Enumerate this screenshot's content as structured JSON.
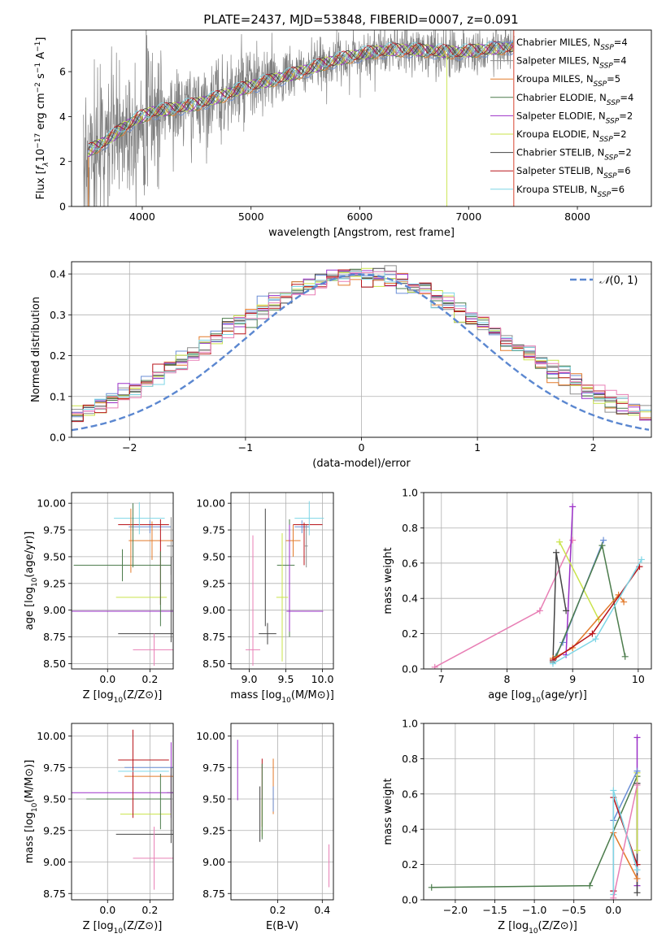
{
  "figure": {
    "title": "PLATE=2437, MJD=53848, FIBERID=0007, z=0.091"
  },
  "colors": {
    "Chabrier MILES": "#6b8fd6",
    "Salpeter MILES": "#8e8e8e",
    "Kroupa MILES": "#e27a2a",
    "Chabrier ELODIE": "#4c7c4c",
    "Salpeter ELODIE": "#9b30c8",
    "Kroupa ELODIE": "#c9e34a",
    "Chabrier STELIB": "#444444",
    "Salpeter STELIB": "#b8151b",
    "Kroupa STELIB": "#7ed6e6",
    "Pink": "#e87fb5",
    "Data": "#808080",
    "Normal": "#5b87d0"
  },
  "chart_data": [
    {
      "id": "spectrum",
      "type": "line",
      "xlabel": "wavelength [Angstrom, rest frame]",
      "ylabel": "Flux [f_λ10^-17 erg cm^-2 s^-1 A^-1]",
      "xlim": [
        3350,
        8680
      ],
      "ylim": [
        0,
        7.85
      ],
      "xticks": [
        4000,
        5000,
        6000,
        7000,
        8000
      ],
      "yticks": [
        0,
        2,
        4,
        6
      ],
      "legend_position": "top-right",
      "legend": [
        {
          "label": "Chabrier MILES, N_SSP=4",
          "color": "#6b8fd6"
        },
        {
          "label": "Salpeter MILES, N_SSP=4",
          "color": "#8e8e8e"
        },
        {
          "label": "Kroupa MILES, N_SSP=5",
          "color": "#e27a2a"
        },
        {
          "label": "Chabrier ELODIE, N_SSP=4",
          "color": "#4c7c4c"
        },
        {
          "label": "Salpeter ELODIE, N_SSP=2",
          "color": "#9b30c8"
        },
        {
          "label": "Kroupa ELODIE, N_SSP=2",
          "color": "#c9e34a"
        },
        {
          "label": "Chabrier STELIB, N_SSP=2",
          "color": "#444444"
        },
        {
          "label": "Salpeter STELIB, N_SSP=6",
          "color": "#b8151b"
        },
        {
          "label": "Kroupa STELIB, N_SSP=6",
          "color": "#7ed6e6"
        }
      ],
      "continuum": [
        [
          3500,
          2.45
        ],
        [
          3650,
          2.85
        ],
        [
          3800,
          3.4
        ],
        [
          3950,
          3.9
        ],
        [
          4100,
          4.2
        ],
        [
          4300,
          4.35
        ],
        [
          4500,
          4.55
        ],
        [
          4700,
          4.85
        ],
        [
          4900,
          5.2
        ],
        [
          5100,
          5.5
        ],
        [
          5300,
          5.75
        ],
        [
          5500,
          6.05
        ],
        [
          5700,
          6.4
        ],
        [
          5900,
          6.65
        ],
        [
          6100,
          6.85
        ],
        [
          6300,
          6.95
        ],
        [
          6500,
          6.95
        ],
        [
          6700,
          6.9
        ],
        [
          6900,
          6.85
        ],
        [
          7100,
          6.95
        ],
        [
          7300,
          7.05
        ],
        [
          7420,
          7.1
        ]
      ],
      "data_range": [
        3460,
        7420
      ],
      "model_range": [
        3500,
        7420
      ]
    },
    {
      "id": "residuals",
      "type": "line",
      "xlabel": "(data-model)/error",
      "ylabel": "Normed distribution",
      "xlim": [
        -2.5,
        2.5
      ],
      "ylim": [
        0,
        0.43
      ],
      "xticks": [
        -2,
        -1,
        0,
        1,
        2
      ],
      "yticks": [
        0.0,
        0.1,
        0.2,
        0.3,
        0.4
      ],
      "legend_position": "top-right",
      "normal_label": "N(0,1)",
      "bin_width": 0.1
    },
    {
      "id": "age_vs_Z",
      "type": "scatter",
      "xlabel": "Z [log10(Z/Z⊙)]",
      "ylabel": "age  [log10(age/yr)]",
      "xlim": [
        -0.17,
        0.31
      ],
      "ylim": [
        8.45,
        10.1
      ],
      "xticks": [
        0.0,
        0.2
      ],
      "yticks": [
        8.5,
        8.75,
        9.0,
        9.25,
        9.5,
        9.75,
        10.0
      ],
      "points": [
        {
          "x": 0.2,
          "y": 9.78,
          "xerr": 0.1,
          "yerr": 0.06,
          "c": "Chabrier MILES"
        },
        {
          "x": 0.3,
          "y": 9.6,
          "xerr": 0.02,
          "yerr": 0.27,
          "c": "Salpeter MILES"
        },
        {
          "x": 0.21,
          "y": 9.65,
          "xerr": 0.11,
          "yerr": 0.18,
          "c": "Kroupa MILES"
        },
        {
          "x": 0.07,
          "y": 9.42,
          "xerr": 0.23,
          "yerr": 0.15,
          "c": "Chabrier ELODIE"
        },
        {
          "x": 0.06,
          "y": 8.99,
          "xerr": 0.55,
          "yerr": 0.0,
          "c": "Salpeter ELODIE"
        },
        {
          "x": 0.16,
          "y": 9.12,
          "xerr": 0.12,
          "yerr": 0.0,
          "c": "Kroupa ELODIE"
        },
        {
          "x": 0.18,
          "y": 8.78,
          "xerr": 0.13,
          "yerr": 0.0,
          "c": "Chabrier STELIB"
        },
        {
          "x": 0.17,
          "y": 9.8,
          "xerr": 0.12,
          "yerr": 0.0,
          "c": "Salpeter STELIB"
        },
        {
          "x": 0.15,
          "y": 9.86,
          "xerr": 0.12,
          "yerr": 0.15,
          "c": "Kroupa STELIB"
        },
        {
          "x": 0.25,
          "y": 9.45,
          "xerr": 0.0,
          "yerr": 0.4,
          "c": "Salpeter STELIB"
        },
        {
          "x": 0.3,
          "y": 9.1,
          "xerr": 0.0,
          "yerr": 0.4,
          "c": "Chabrier STELIB"
        },
        {
          "x": 0.25,
          "y": 9.2,
          "xerr": 0.0,
          "yerr": 0.35,
          "c": "Chabrier ELODIE"
        },
        {
          "x": 0.12,
          "y": 9.7,
          "xerr": 0.0,
          "yerr": 0.3,
          "c": "Chabrier ELODIE"
        },
        {
          "x": 0.11,
          "y": 9.65,
          "xerr": 0.0,
          "yerr": 0.3,
          "c": "Kroupa MILES"
        },
        {
          "x": 0.22,
          "y": 8.63,
          "xerr": 0.1,
          "yerr": 0.15,
          "c": "Pink"
        }
      ]
    },
    {
      "id": "age_vs_mass",
      "type": "scatter",
      "xlabel": "mass [log10(M/M⊙)]",
      "ylabel": "",
      "xlim": [
        8.75,
        10.15
      ],
      "ylim": [
        8.45,
        10.1
      ],
      "xticks": [
        9.0,
        9.5,
        10.0
      ],
      "yticks": [
        8.5,
        8.75,
        9.0,
        9.25,
        9.5,
        9.75,
        10.0
      ],
      "points": [
        {
          "x": 9.72,
          "y": 9.78,
          "xerr": 0.1,
          "yerr": 0.06,
          "c": "Chabrier MILES"
        },
        {
          "x": 9.78,
          "y": 9.6,
          "xerr": 0.02,
          "yerr": 0.2,
          "c": "Salpeter MILES"
        },
        {
          "x": 9.6,
          "y": 9.65,
          "xerr": 0.1,
          "yerr": 0.15,
          "c": "Kroupa MILES"
        },
        {
          "x": 9.5,
          "y": 9.42,
          "xerr": 0.12,
          "yerr": 0.0,
          "c": "Chabrier ELODIE"
        },
        {
          "x": 9.55,
          "y": 9.3,
          "xerr": 0.0,
          "yerr": 0.55,
          "c": "Chabrier ELODIE"
        },
        {
          "x": 9.76,
          "y": 8.99,
          "xerr": 0.25,
          "yerr": 0.0,
          "c": "Salpeter ELODIE"
        },
        {
          "x": 9.55,
          "y": 9.3,
          "xerr": 0.0,
          "yerr": 0.5,
          "c": "Salpeter ELODIE"
        },
        {
          "x": 9.45,
          "y": 9.12,
          "xerr": 0.08,
          "yerr": 0.6,
          "c": "Kroupa ELODIE"
        },
        {
          "x": 9.25,
          "y": 8.78,
          "xerr": 0.12,
          "yerr": 0.1,
          "c": "Chabrier STELIB"
        },
        {
          "x": 9.22,
          "y": 9.4,
          "xerr": 0.0,
          "yerr": 0.55,
          "c": "Chabrier STELIB"
        },
        {
          "x": 9.8,
          "y": 9.8,
          "xerr": 0.2,
          "yerr": 0.0,
          "c": "Salpeter STELIB"
        },
        {
          "x": 9.75,
          "y": 9.62,
          "xerr": 0.0,
          "yerr": 0.2,
          "c": "Salpeter STELIB"
        },
        {
          "x": 9.82,
          "y": 9.86,
          "xerr": 0.2,
          "yerr": 0.16,
          "c": "Kroupa STELIB"
        },
        {
          "x": 9.05,
          "y": 8.63,
          "xerr": 0.1,
          "yerr": 0.15,
          "c": "Pink"
        },
        {
          "x": 9.05,
          "y": 9.2,
          "xerr": 0.0,
          "yerr": 0.5,
          "c": "Pink"
        }
      ]
    },
    {
      "id": "weight_vs_age",
      "type": "line",
      "xlabel": "age  [log10(age/yr)]",
      "ylabel": "mass weight",
      "xlim": [
        6.73,
        10.2
      ],
      "ylim": [
        0,
        1.0
      ],
      "xticks": [
        7,
        8,
        9,
        10
      ],
      "yticks": [
        0.0,
        0.2,
        0.4,
        0.6,
        0.8,
        1.0
      ],
      "series": [
        {
          "c": "Pink",
          "x": [
            6.9,
            8.5,
            9.0
          ],
          "y": [
            0.01,
            0.33,
            0.73
          ]
        },
        {
          "c": "Salpeter ELODIE",
          "x": [
            8.9,
            9.0
          ],
          "y": [
            0.08,
            0.92
          ]
        },
        {
          "c": "Chabrier STELIB",
          "x": [
            8.7,
            8.75,
            8.9
          ],
          "y": [
            0.04,
            0.66,
            0.33
          ]
        },
        {
          "c": "Kroupa ELODIE",
          "x": [
            8.8,
            9.4
          ],
          "y": [
            0.72,
            0.28
          ]
        },
        {
          "c": "Chabrier MILES",
          "x": [
            8.7,
            8.85,
            9.47
          ],
          "y": [
            0.05,
            0.15,
            0.73
          ]
        },
        {
          "c": "Chabrier ELODIE",
          "x": [
            8.75,
            9.45,
            9.8
          ],
          "y": [
            0.07,
            0.7,
            0.07
          ]
        },
        {
          "c": "Kroupa MILES",
          "x": [
            8.7,
            9.0,
            9.7,
            9.78
          ],
          "y": [
            0.06,
            0.12,
            0.42,
            0.38
          ]
        },
        {
          "c": "Salpeter STELIB",
          "x": [
            8.7,
            9.3,
            10.02
          ],
          "y": [
            0.05,
            0.2,
            0.58
          ]
        },
        {
          "c": "Kroupa STELIB",
          "x": [
            8.7,
            9.35,
            10.05
          ],
          "y": [
            0.03,
            0.17,
            0.62
          ]
        }
      ]
    },
    {
      "id": "mass_vs_Z",
      "type": "scatter",
      "xlabel": "Z [log10(Z/Z⊙)]",
      "ylabel": "mass [log10(M/M⊙)]",
      "xlim": [
        -0.17,
        0.31
      ],
      "ylim": [
        8.7,
        10.1
      ],
      "xticks": [
        0.0,
        0.2
      ],
      "yticks": [
        8.75,
        9.0,
        9.25,
        9.5,
        9.75,
        10.0
      ],
      "points": [
        {
          "x": 0.2,
          "y": 9.75,
          "xerr": 0.12,
          "yerr": 0.0,
          "c": "Chabrier MILES"
        },
        {
          "x": 0.3,
          "y": 9.55,
          "xerr": 0.02,
          "yerr": 0.15,
          "c": "Salpeter MILES"
        },
        {
          "x": 0.21,
          "y": 9.68,
          "xerr": 0.13,
          "yerr": 0.0,
          "c": "Kroupa MILES"
        },
        {
          "x": 0.1,
          "y": 9.5,
          "xerr": 0.2,
          "yerr": 0.0,
          "c": "Chabrier ELODIE"
        },
        {
          "x": 0.07,
          "y": 9.55,
          "xerr": 0.55,
          "yerr": 0.0,
          "c": "Salpeter ELODIE"
        },
        {
          "x": 0.3,
          "y": 9.65,
          "xerr": 0.0,
          "yerr": 0.3,
          "c": "Salpeter ELODIE"
        },
        {
          "x": 0.18,
          "y": 9.38,
          "xerr": 0.12,
          "yerr": 0.0,
          "c": "Kroupa ELODIE"
        },
        {
          "x": 0.18,
          "y": 9.22,
          "xerr": 0.14,
          "yerr": 0.0,
          "c": "Chabrier STELIB"
        },
        {
          "x": 0.17,
          "y": 9.81,
          "xerr": 0.12,
          "yerr": 0.0,
          "c": "Salpeter STELIB"
        },
        {
          "x": 0.12,
          "y": 9.7,
          "xerr": 0.0,
          "yerr": 0.35,
          "c": "Salpeter STELIB"
        },
        {
          "x": 0.17,
          "y": 9.72,
          "xerr": 0.12,
          "yerr": 0.0,
          "c": "Kroupa STELIB"
        },
        {
          "x": 0.25,
          "y": 9.48,
          "xerr": 0.0,
          "yerr": 0.22,
          "c": "Chabrier ELODIE"
        },
        {
          "x": 0.3,
          "y": 9.45,
          "xerr": 0.0,
          "yerr": 0.3,
          "c": "Chabrier STELIB"
        },
        {
          "x": 0.22,
          "y": 9.03,
          "xerr": 0.1,
          "yerr": 0.25,
          "c": "Pink"
        }
      ]
    },
    {
      "id": "mass_vs_ebv",
      "type": "scatter",
      "xlabel": "E(B-V)",
      "ylabel": "",
      "xlim": [
        -0.01,
        0.45
      ],
      "ylim": [
        8.7,
        10.1
      ],
      "xticks": [
        0.2,
        0.4
      ],
      "yticks": [
        8.75,
        9.0,
        9.25,
        9.5,
        9.75,
        10.0
      ],
      "points": [
        {
          "x": 0.02,
          "y": 9.73,
          "xerr": 0.0,
          "yerr": 0.24,
          "c": "Salpeter ELODIE"
        },
        {
          "x": 0.13,
          "y": 9.55,
          "xerr": 0.0,
          "yerr": 0.27,
          "c": "Salpeter STELIB"
        },
        {
          "x": 0.12,
          "y": 9.38,
          "xerr": 0.0,
          "yerr": 0.22,
          "c": "Chabrier STELIB"
        },
        {
          "x": 0.13,
          "y": 9.35,
          "xerr": 0.0,
          "yerr": 0.15,
          "c": "Kroupa ELODIE"
        },
        {
          "x": 0.13,
          "y": 9.48,
          "xerr": 0.0,
          "yerr": 0.3,
          "c": "Chabrier ELODIE"
        },
        {
          "x": 0.18,
          "y": 9.6,
          "xerr": 0.0,
          "yerr": 0.22,
          "c": "Kroupa MILES"
        },
        {
          "x": 0.18,
          "y": 9.5,
          "xerr": 0.0,
          "yerr": 0.1,
          "c": "Chabrier MILES"
        },
        {
          "x": 0.43,
          "y": 8.97,
          "xerr": 0.0,
          "yerr": 0.17,
          "c": "Pink"
        }
      ]
    },
    {
      "id": "weight_vs_Z",
      "type": "line",
      "xlabel": "Z [log10(Z/Z⊙)]",
      "ylabel": "mass weight",
      "xlim": [
        -2.4,
        0.48
      ],
      "ylim": [
        0,
        1.0
      ],
      "xticks": [
        -2.0,
        -1.5,
        -1.0,
        -0.5,
        0.0
      ],
      "yticks": [
        0.0,
        0.2,
        0.4,
        0.6,
        0.8,
        1.0
      ],
      "series": [
        {
          "c": "Chabrier ELODIE",
          "x": [
            -2.3,
            -0.3,
            0.3
          ],
          "y": [
            0.07,
            0.08,
            0.7
          ]
        },
        {
          "c": "Salpeter ELODIE",
          "x": [
            0.3,
            0.3
          ],
          "y": [
            0.08,
            0.92
          ]
        },
        {
          "c": "Chabrier STELIB",
          "x": [
            0.3,
            0.3
          ],
          "y": [
            0.04,
            0.66
          ]
        },
        {
          "c": "Kroupa ELODIE",
          "x": [
            0.3,
            0.3
          ],
          "y": [
            0.28,
            0.72
          ]
        },
        {
          "c": "Chabrier MILES",
          "x": [
            0.0,
            0.0,
            0.3
          ],
          "y": [
            0.05,
            0.45,
            0.73
          ]
        },
        {
          "c": "Kroupa MILES",
          "x": [
            0.0,
            0.3
          ],
          "y": [
            0.38,
            0.12
          ]
        },
        {
          "c": "Salpeter STELIB",
          "x": [
            0.0,
            0.0,
            0.3
          ],
          "y": [
            0.05,
            0.58,
            0.2
          ]
        },
        {
          "c": "Kroupa STELIB",
          "x": [
            0.0,
            0.0,
            0.3
          ],
          "y": [
            0.03,
            0.62,
            0.17
          ]
        },
        {
          "c": "Pink",
          "x": [
            0.0,
            0.3
          ],
          "y": [
            0.01,
            0.65
          ]
        }
      ]
    }
  ]
}
